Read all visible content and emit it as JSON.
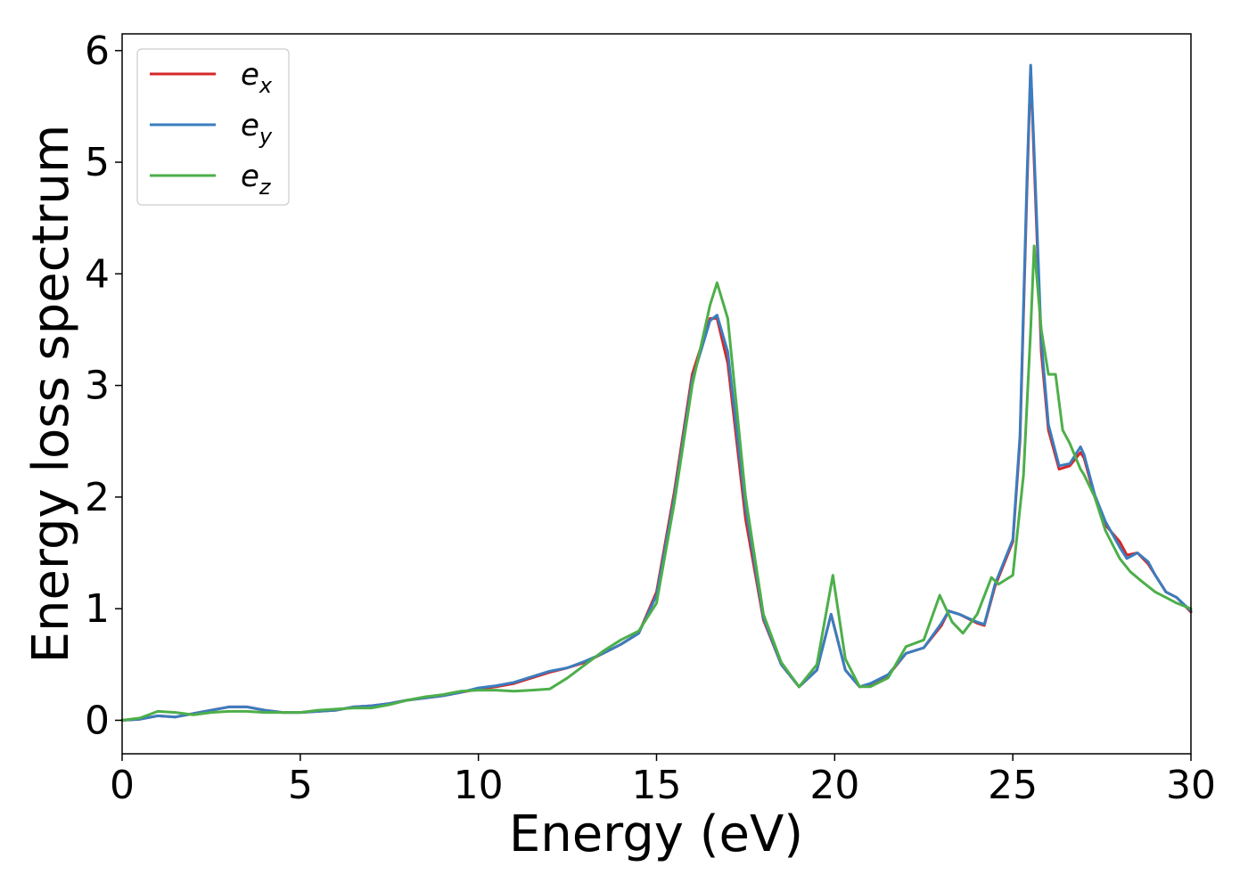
{
  "chart_data": {
    "type": "line",
    "xlabel": "Energy (eV)",
    "ylabel": "Energy loss spectrum",
    "xlim": [
      0,
      30
    ],
    "ylim": [
      -0.3,
      6.15
    ],
    "xticks": [
      0,
      5,
      10,
      15,
      20,
      25,
      30
    ],
    "yticks": [
      0,
      1,
      2,
      3,
      4,
      5,
      6
    ],
    "grid": false,
    "legend_position": "top-left",
    "series": [
      {
        "name": "e_x",
        "label_base": "e",
        "label_sub": "x",
        "color": "#d62728",
        "points": [
          [
            0,
            0
          ],
          [
            0.5,
            0.01
          ],
          [
            1,
            0.04
          ],
          [
            1.5,
            0.03
          ],
          [
            2,
            0.06
          ],
          [
            2.5,
            0.09
          ],
          [
            3,
            0.12
          ],
          [
            3.5,
            0.12
          ],
          [
            4,
            0.09
          ],
          [
            4.5,
            0.07
          ],
          [
            5,
            0.07
          ],
          [
            5.5,
            0.08
          ],
          [
            6,
            0.09
          ],
          [
            6.5,
            0.12
          ],
          [
            7,
            0.13
          ],
          [
            7.5,
            0.15
          ],
          [
            8,
            0.18
          ],
          [
            8.5,
            0.2
          ],
          [
            9,
            0.22
          ],
          [
            9.5,
            0.25
          ],
          [
            10,
            0.28
          ],
          [
            10.5,
            0.3
          ],
          [
            11,
            0.33
          ],
          [
            11.5,
            0.38
          ],
          [
            12,
            0.43
          ],
          [
            12.5,
            0.47
          ],
          [
            13,
            0.52
          ],
          [
            13.5,
            0.6
          ],
          [
            14,
            0.68
          ],
          [
            14.5,
            0.78
          ],
          [
            15,
            1.15
          ],
          [
            15.5,
            2.05
          ],
          [
            16,
            3.1
          ],
          [
            16.5,
            3.6
          ],
          [
            16.7,
            3.6
          ],
          [
            17,
            3.2
          ],
          [
            17.5,
            1.8
          ],
          [
            18,
            0.9
          ],
          [
            18.5,
            0.5
          ],
          [
            19,
            0.3
          ],
          [
            19.5,
            0.45
          ],
          [
            19.9,
            0.95
          ],
          [
            20.3,
            0.45
          ],
          [
            20.7,
            0.3
          ],
          [
            21,
            0.32
          ],
          [
            21.5,
            0.4
          ],
          [
            22,
            0.6
          ],
          [
            22.5,
            0.65
          ],
          [
            23,
            0.85
          ],
          [
            23.2,
            0.98
          ],
          [
            23.5,
            0.95
          ],
          [
            24,
            0.87
          ],
          [
            24.2,
            0.85
          ],
          [
            24.5,
            1.2
          ],
          [
            25,
            1.6
          ],
          [
            25.2,
            2.5
          ],
          [
            25.4,
            4.8
          ],
          [
            25.5,
            5.85
          ],
          [
            25.6,
            5.0
          ],
          [
            25.8,
            3.3
          ],
          [
            26,
            2.6
          ],
          [
            26.3,
            2.25
          ],
          [
            26.6,
            2.28
          ],
          [
            26.9,
            2.4
          ],
          [
            27,
            2.35
          ],
          [
            27.3,
            2.0
          ],
          [
            27.6,
            1.75
          ],
          [
            28,
            1.6
          ],
          [
            28.2,
            1.48
          ],
          [
            28.5,
            1.5
          ],
          [
            28.8,
            1.4
          ],
          [
            29,
            1.3
          ],
          [
            29.3,
            1.15
          ],
          [
            29.6,
            1.1
          ],
          [
            30,
            0.97
          ]
        ]
      },
      {
        "name": "e_y",
        "label_base": "e",
        "label_sub": "y",
        "color": "#3b7dbf",
        "points": [
          [
            0,
            0
          ],
          [
            0.5,
            0.01
          ],
          [
            1,
            0.04
          ],
          [
            1.5,
            0.03
          ],
          [
            2,
            0.06
          ],
          [
            2.5,
            0.09
          ],
          [
            3,
            0.12
          ],
          [
            3.5,
            0.12
          ],
          [
            4,
            0.09
          ],
          [
            4.5,
            0.07
          ],
          [
            5,
            0.07
          ],
          [
            5.5,
            0.08
          ],
          [
            6,
            0.09
          ],
          [
            6.5,
            0.12
          ],
          [
            7,
            0.13
          ],
          [
            7.5,
            0.15
          ],
          [
            8,
            0.18
          ],
          [
            8.5,
            0.2
          ],
          [
            9,
            0.22
          ],
          [
            9.5,
            0.25
          ],
          [
            10,
            0.29
          ],
          [
            10.5,
            0.31
          ],
          [
            11,
            0.34
          ],
          [
            11.5,
            0.39
          ],
          [
            12,
            0.44
          ],
          [
            12.5,
            0.47
          ],
          [
            13,
            0.53
          ],
          [
            13.5,
            0.6
          ],
          [
            14,
            0.68
          ],
          [
            14.5,
            0.78
          ],
          [
            15,
            1.12
          ],
          [
            15.5,
            2.0
          ],
          [
            16,
            3.05
          ],
          [
            16.5,
            3.58
          ],
          [
            16.7,
            3.63
          ],
          [
            17,
            3.3
          ],
          [
            17.5,
            1.9
          ],
          [
            18,
            0.92
          ],
          [
            18.5,
            0.5
          ],
          [
            19,
            0.3
          ],
          [
            19.5,
            0.45
          ],
          [
            19.9,
            0.95
          ],
          [
            20.3,
            0.45
          ],
          [
            20.7,
            0.3
          ],
          [
            21,
            0.33
          ],
          [
            21.5,
            0.41
          ],
          [
            22,
            0.6
          ],
          [
            22.5,
            0.65
          ],
          [
            23,
            0.87
          ],
          [
            23.2,
            0.98
          ],
          [
            23.5,
            0.95
          ],
          [
            24,
            0.88
          ],
          [
            24.2,
            0.86
          ],
          [
            24.5,
            1.22
          ],
          [
            25,
            1.62
          ],
          [
            25.2,
            2.55
          ],
          [
            25.4,
            4.9
          ],
          [
            25.5,
            5.87
          ],
          [
            25.6,
            5.1
          ],
          [
            25.8,
            3.4
          ],
          [
            26,
            2.65
          ],
          [
            26.3,
            2.28
          ],
          [
            26.6,
            2.3
          ],
          [
            26.9,
            2.45
          ],
          [
            27,
            2.38
          ],
          [
            27.3,
            2.02
          ],
          [
            27.6,
            1.78
          ],
          [
            28,
            1.55
          ],
          [
            28.2,
            1.45
          ],
          [
            28.5,
            1.5
          ],
          [
            28.8,
            1.42
          ],
          [
            29,
            1.3
          ],
          [
            29.3,
            1.15
          ],
          [
            29.6,
            1.1
          ],
          [
            30,
            0.98
          ]
        ]
      },
      {
        "name": "e_z",
        "label_base": "e",
        "label_sub": "z",
        "color": "#4daf4a",
        "points": [
          [
            0,
            0
          ],
          [
            0.5,
            0.02
          ],
          [
            1,
            0.08
          ],
          [
            1.5,
            0.07
          ],
          [
            2,
            0.05
          ],
          [
            2.5,
            0.07
          ],
          [
            3,
            0.08
          ],
          [
            3.5,
            0.08
          ],
          [
            4,
            0.07
          ],
          [
            4.5,
            0.07
          ],
          [
            5,
            0.07
          ],
          [
            5.5,
            0.09
          ],
          [
            6,
            0.1
          ],
          [
            6.5,
            0.11
          ],
          [
            7,
            0.11
          ],
          [
            7.5,
            0.14
          ],
          [
            8,
            0.18
          ],
          [
            8.5,
            0.21
          ],
          [
            9,
            0.23
          ],
          [
            9.5,
            0.26
          ],
          [
            10,
            0.27
          ],
          [
            10.5,
            0.27
          ],
          [
            11,
            0.26
          ],
          [
            11.5,
            0.27
          ],
          [
            12,
            0.28
          ],
          [
            12.5,
            0.38
          ],
          [
            13,
            0.5
          ],
          [
            13.5,
            0.62
          ],
          [
            14,
            0.72
          ],
          [
            14.5,
            0.8
          ],
          [
            15,
            1.05
          ],
          [
            15.5,
            1.95
          ],
          [
            16,
            3.0
          ],
          [
            16.5,
            3.72
          ],
          [
            16.7,
            3.92
          ],
          [
            17,
            3.6
          ],
          [
            17.5,
            2.0
          ],
          [
            18,
            0.95
          ],
          [
            18.5,
            0.52
          ],
          [
            19,
            0.3
          ],
          [
            19.5,
            0.5
          ],
          [
            19.95,
            1.3
          ],
          [
            20.3,
            0.55
          ],
          [
            20.7,
            0.3
          ],
          [
            21,
            0.3
          ],
          [
            21.5,
            0.38
          ],
          [
            22,
            0.66
          ],
          [
            22.5,
            0.72
          ],
          [
            22.95,
            1.12
          ],
          [
            23.3,
            0.88
          ],
          [
            23.6,
            0.78
          ],
          [
            24,
            0.95
          ],
          [
            24.4,
            1.28
          ],
          [
            24.6,
            1.22
          ],
          [
            25,
            1.3
          ],
          [
            25.3,
            2.2
          ],
          [
            25.5,
            3.5
          ],
          [
            25.6,
            4.25
          ],
          [
            25.8,
            3.5
          ],
          [
            26,
            3.1
          ],
          [
            26.2,
            3.1
          ],
          [
            26.4,
            2.6
          ],
          [
            26.6,
            2.48
          ],
          [
            26.9,
            2.25
          ],
          [
            27,
            2.2
          ],
          [
            27.3,
            2.0
          ],
          [
            27.6,
            1.7
          ],
          [
            28,
            1.45
          ],
          [
            28.3,
            1.33
          ],
          [
            28.6,
            1.25
          ],
          [
            29,
            1.15
          ],
          [
            29.3,
            1.1
          ],
          [
            29.6,
            1.05
          ],
          [
            30,
            1.0
          ]
        ]
      }
    ]
  }
}
